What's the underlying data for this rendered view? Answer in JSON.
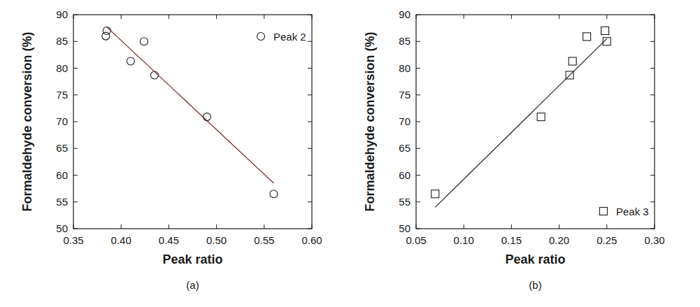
{
  "chart_data": [
    {
      "type": "scatter",
      "subtitle": "(a)",
      "x_label": "Peak ratio",
      "y_label": "Formaldehyde conversion (%)",
      "legend": "upper right",
      "xlim": [
        0.35,
        0.6
      ],
      "ylim": [
        50,
        90
      ],
      "xticks": [
        {
          "value": 0.35,
          "label": "0.35"
        },
        {
          "value": 0.4,
          "label": "0.40"
        },
        {
          "value": 0.45,
          "label": "0.45"
        },
        {
          "value": 0.5,
          "label": "0.50"
        },
        {
          "value": 0.55,
          "label": "0.55"
        },
        {
          "value": 0.6,
          "label": "0.60"
        }
      ],
      "yticks": [
        50,
        55,
        60,
        65,
        70,
        75,
        80,
        85,
        90
      ],
      "series": [
        {
          "name": "Peak 2",
          "type": "scatter",
          "marker": "circle",
          "color": "#1a1a1a",
          "x": [
            0.384,
            0.385,
            0.41,
            0.424,
            0.435,
            0.49,
            0.56
          ],
          "values": [
            86,
            87,
            81.3,
            85,
            78.7,
            70.9,
            56.5
          ]
        },
        {
          "type": "line",
          "color": "#7a1f1f",
          "line_style": "solid",
          "x": [
            0.385,
            0.56
          ],
          "values": [
            87.7,
            58.5
          ]
        }
      ]
    },
    {
      "type": "scatter",
      "subtitle": "(b)",
      "x_label": "Peak ratio",
      "y_label": "Formaldehyde conversion (%)",
      "legend": "lower right",
      "xlim": [
        0.05,
        0.3
      ],
      "ylim": [
        50,
        90
      ],
      "xticks": [
        {
          "value": 0.05,
          "label": "0.05"
        },
        {
          "value": 0.1,
          "label": "0.10"
        },
        {
          "value": 0.15,
          "label": "0.15"
        },
        {
          "value": 0.2,
          "label": "0.20"
        },
        {
          "value": 0.25,
          "label": "0.25"
        },
        {
          "value": 0.3,
          "label": "0.30"
        }
      ],
      "yticks": [
        50,
        55,
        60,
        65,
        70,
        75,
        80,
        85,
        90
      ],
      "series": [
        {
          "name": "Peak 3",
          "type": "scatter",
          "marker": "square",
          "color": "#1a1a1a",
          "x": [
            0.07,
            0.181,
            0.211,
            0.214,
            0.229,
            0.248,
            0.25
          ],
          "values": [
            56.5,
            70.9,
            78.7,
            81.3,
            85.9,
            87,
            85
          ]
        },
        {
          "type": "line",
          "color": "#1a1a1a",
          "line_style": "solid",
          "x": [
            0.07,
            0.25
          ],
          "values": [
            54,
            85.5
          ]
        }
      ]
    }
  ]
}
